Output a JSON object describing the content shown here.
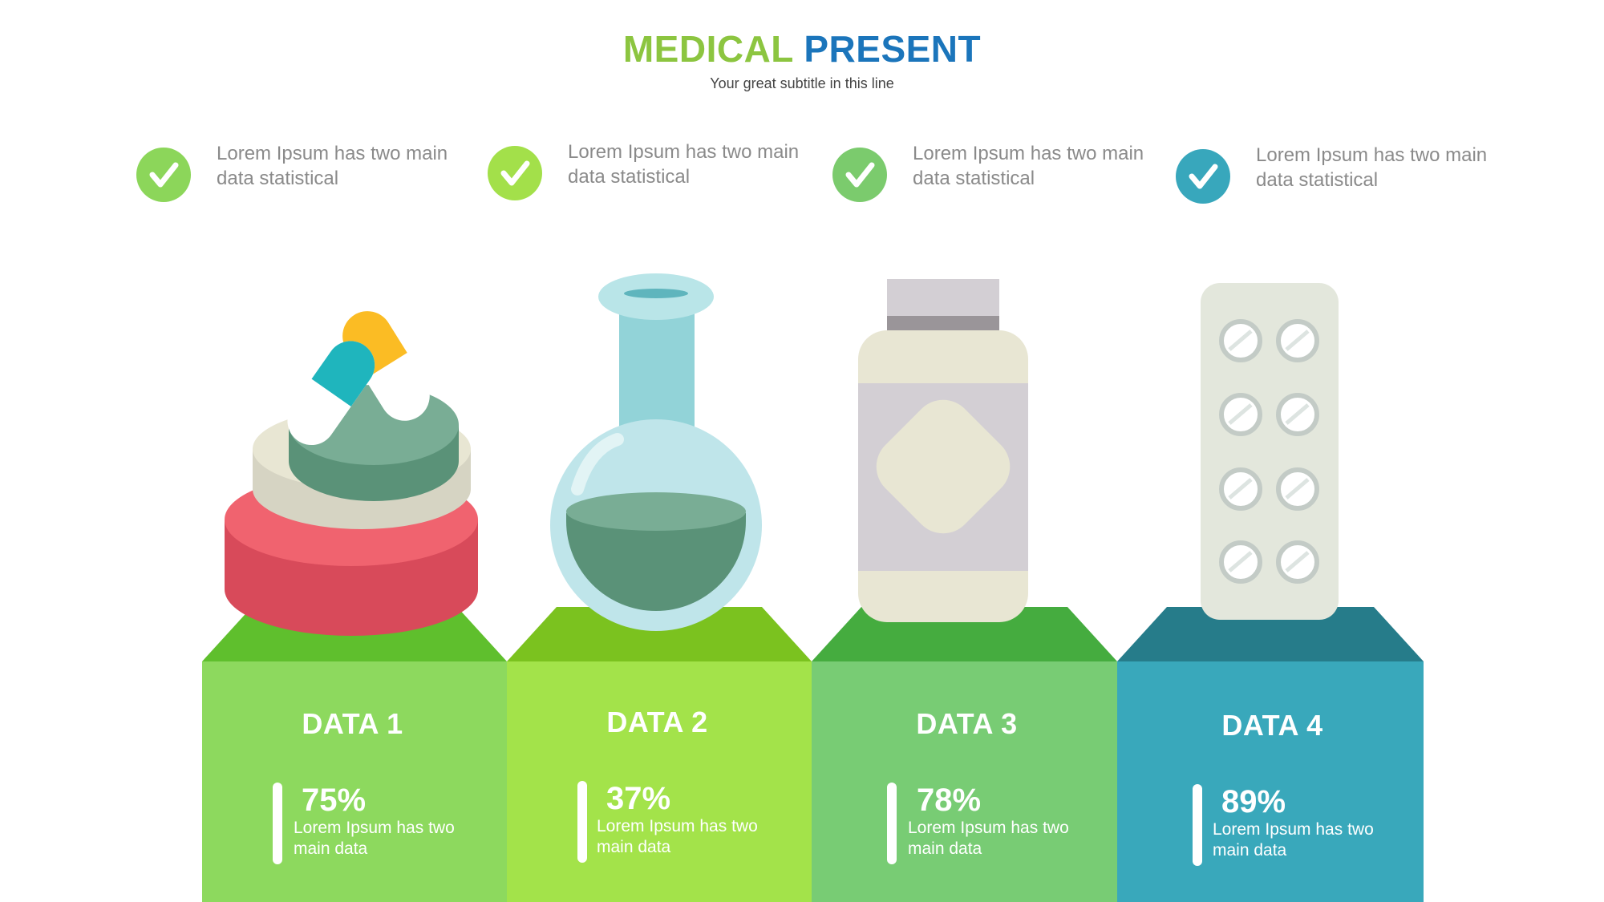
{
  "header": {
    "title_part1": "MEDICAL",
    "title_part2": "PRESENT",
    "subtitle": "Your great subtitle in this line"
  },
  "features": [
    {
      "text": "Lorem Ipsum has two main data statistical",
      "color": "#8cd65a"
    },
    {
      "text": "Lorem Ipsum has two main data statistical",
      "color": "#a3e04a"
    },
    {
      "text": "Lorem Ipsum has two main data statistical",
      "color": "#7bcb6d"
    },
    {
      "text": "Lorem Ipsum has two main data statistical",
      "color": "#38a7bc"
    }
  ],
  "columns": [
    {
      "label": "DATA 1",
      "percent": "75%",
      "desc": "Lorem Ipsum has two main data",
      "color": "#8dd95e",
      "top_color": "#5fbf2d",
      "icon": "pills-icon"
    },
    {
      "label": "DATA 2",
      "percent": "37%",
      "desc": "Lorem Ipsum has two main data",
      "color": "#a3e34a",
      "top_color": "#7bc21f",
      "icon": "flask-icon"
    },
    {
      "label": "DATA 3",
      "percent": "78%",
      "desc": "Lorem Ipsum has two main data",
      "color": "#78cc74",
      "top_color": "#45ac3f",
      "icon": "medicine-bottle-icon"
    },
    {
      "label": "DATA 4",
      "percent": "89%",
      "desc": "Lorem Ipsum has two main data",
      "color": "#39a8bb",
      "top_color": "#267c8a",
      "icon": "pill-blister-icon"
    }
  ]
}
